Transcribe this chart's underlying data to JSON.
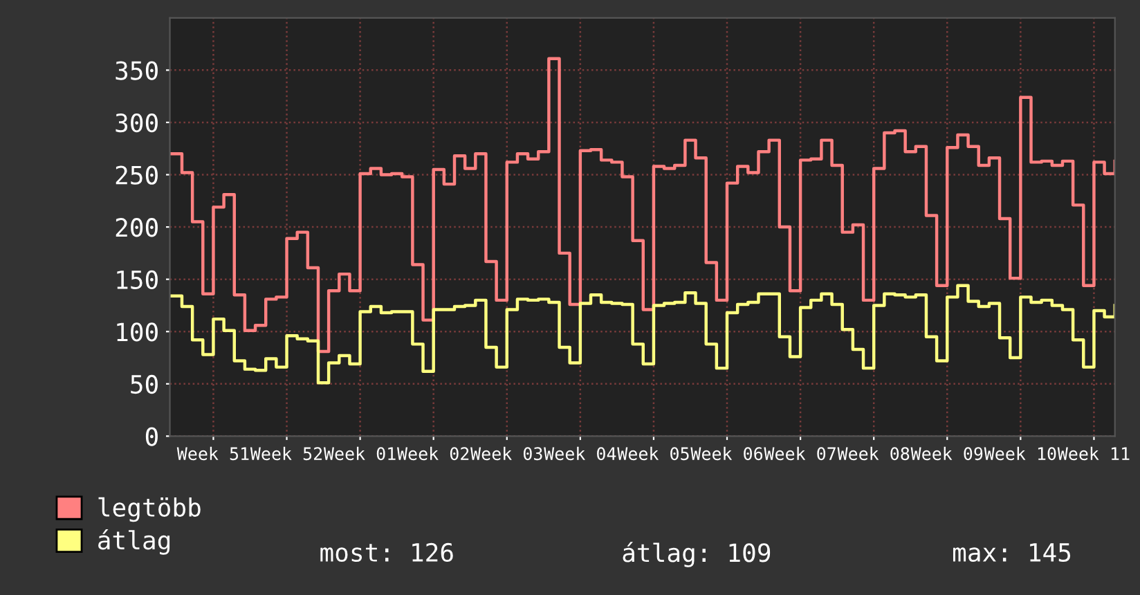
{
  "chart_data": {
    "type": "step",
    "categories": [
      null,
      null,
      null,
      null,
      "Week 51",
      null,
      null,
      null,
      null,
      null,
      null,
      "Week 52",
      null,
      null,
      null,
      null,
      null,
      null,
      "Week 01",
      null,
      null,
      null,
      null,
      null,
      null,
      "Week 02",
      null,
      null,
      null,
      null,
      null,
      null,
      "Week 03",
      null,
      null,
      null,
      null,
      null,
      null,
      "Week 04",
      null,
      null,
      null,
      null,
      null,
      null,
      "Week 05",
      null,
      null,
      null,
      null,
      null,
      null,
      "Week 06",
      null,
      null,
      null,
      null,
      null,
      null,
      "Week 07",
      null,
      null,
      null,
      null,
      null,
      null,
      "Week 08",
      null,
      null,
      null,
      null,
      null,
      null,
      "Week 09",
      null,
      null,
      null,
      null,
      null,
      null,
      "Week 10",
      null,
      null,
      null,
      null,
      null,
      null,
      "Week 11",
      null,
      null
    ],
    "series": [
      {
        "name": "legtöbb",
        "color": "#ff8080",
        "values": [
          270,
          252,
          205,
          136,
          219,
          231,
          135,
          101,
          106,
          131,
          133,
          189,
          195,
          161,
          81,
          139,
          155,
          139,
          251,
          256,
          250,
          251,
          248,
          164,
          111,
          255,
          241,
          268,
          256,
          270,
          167,
          130,
          262,
          270,
          265,
          272,
          361,
          175,
          126,
          273,
          274,
          264,
          262,
          248,
          187,
          121,
          258,
          256,
          259,
          283,
          266,
          166,
          130,
          242,
          258,
          252,
          272,
          283,
          200,
          139,
          264,
          265,
          283,
          259,
          195,
          202,
          130,
          256,
          290,
          292,
          272,
          277,
          211,
          144,
          276,
          288,
          277,
          259,
          266,
          208,
          151,
          324,
          262,
          263,
          259,
          263,
          221,
          144,
          262,
          251,
          263
        ]
      },
      {
        "name": "átlag",
        "color": "#ffff80",
        "values": [
          134,
          124,
          92,
          78,
          112,
          101,
          72,
          64,
          63,
          74,
          66,
          96,
          93,
          91,
          51,
          70,
          77,
          69,
          119,
          124,
          118,
          119,
          119,
          88,
          62,
          121,
          121,
          124,
          125,
          130,
          85,
          66,
          121,
          131,
          130,
          131,
          128,
          85,
          70,
          127,
          135,
          128,
          127,
          126,
          88,
          69,
          125,
          127,
          128,
          137,
          127,
          88,
          65,
          118,
          126,
          128,
          136,
          136,
          95,
          76,
          123,
          130,
          136,
          126,
          102,
          83,
          65,
          125,
          136,
          135,
          133,
          135,
          95,
          72,
          133,
          144,
          129,
          124,
          127,
          94,
          75,
          133,
          128,
          130,
          125,
          121,
          92,
          66,
          120,
          114,
          125
        ]
      }
    ],
    "ylim": [
      0,
      400
    ],
    "yticks": [
      0,
      50,
      100,
      150,
      200,
      250,
      300,
      350
    ],
    "grid": true,
    "legend": "bottom left",
    "line_style": "solid",
    "annotations": [
      "most: 126",
      "átlag: 109",
      "max: 145"
    ]
  }
}
